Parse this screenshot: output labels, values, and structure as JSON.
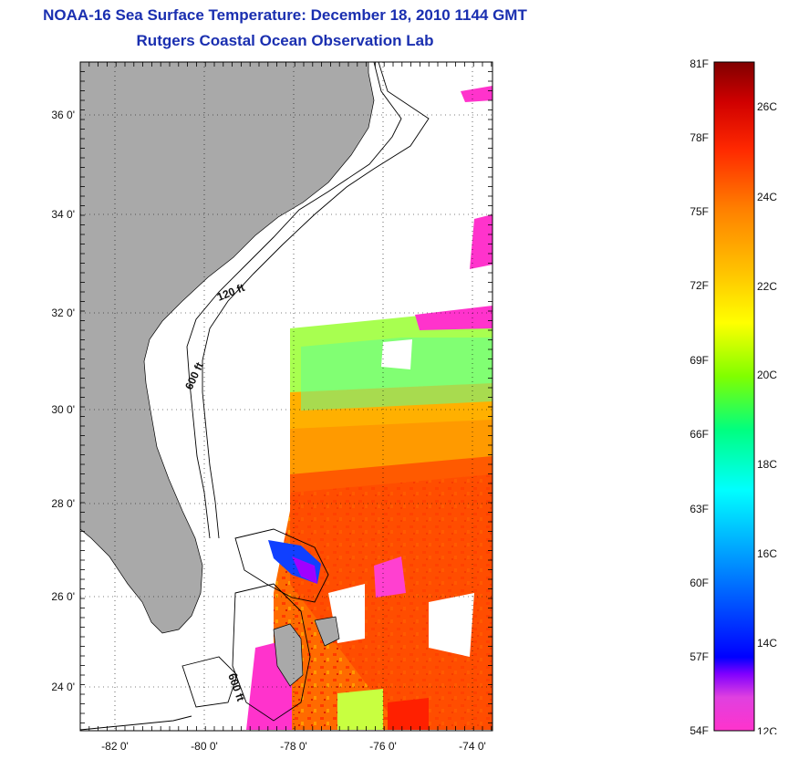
{
  "title": {
    "line1": "NOAA-16 Sea Surface Temperature:  December 18, 2010 1144 GMT",
    "line2": "Rutgers Coastal Ocean Observation Lab"
  },
  "map": {
    "lat_labels": [
      "36 0'",
      "34 0'",
      "32 0'",
      "30 0'",
      "28 0'",
      "26 0'",
      "24 0'"
    ],
    "lon_labels": [
      "-82 0'",
      "-80 0'",
      "-78 0'",
      "-76 0'",
      "-74 0'"
    ],
    "contour_labels": [
      "120 ft",
      "600 ft",
      "600 ft"
    ],
    "land_color": "#a9a9a9",
    "background_color": "#ffffff"
  },
  "colorbar": {
    "f_labels": [
      "81F",
      "78F",
      "75F",
      "72F",
      "69F",
      "66F",
      "63F",
      "60F",
      "57F",
      "54F"
    ],
    "c_labels": [
      "26C",
      "24C",
      "22C",
      "20C",
      "18C",
      "16C",
      "14C",
      "12C"
    ],
    "gradient": [
      "#ff33cc",
      "#8000ff",
      "#0000ff",
      "#00a0ff",
      "#00ffff",
      "#00ff80",
      "#80ff00",
      "#ffff00",
      "#ffc000",
      "#ff8000",
      "#ff3000",
      "#d00000",
      "#800000"
    ]
  }
}
